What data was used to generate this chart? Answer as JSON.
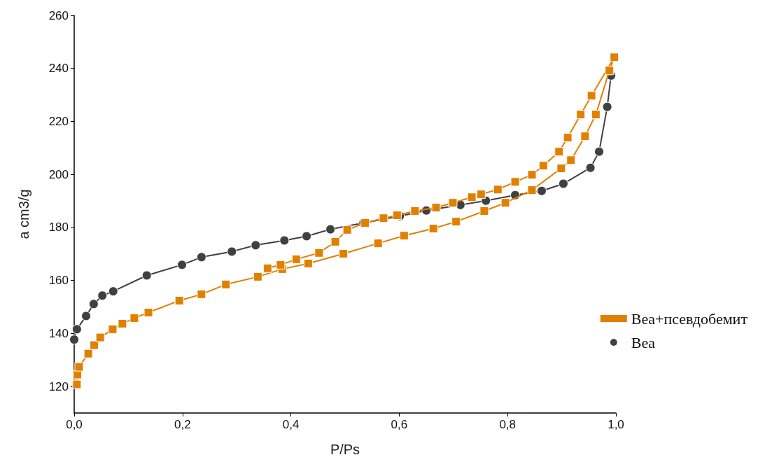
{
  "chart_data": {
    "type": "line",
    "xlabel": "P/Ps",
    "ylabel": "a cm3/g",
    "xlim": [
      0,
      1
    ],
    "ylim": [
      110,
      260
    ],
    "xticks": [
      {
        "value": 0,
        "label": "0,0"
      },
      {
        "value": 0.2,
        "label": "0,2"
      },
      {
        "value": 0.4,
        "label": "0,4"
      },
      {
        "value": 0.6,
        "label": "0,6"
      },
      {
        "value": 0.8,
        "label": "0,8"
      },
      {
        "value": 1,
        "label": "1,0"
      }
    ],
    "yticks": [
      120,
      140,
      160,
      180,
      200,
      220,
      240,
      260
    ],
    "grid": false,
    "legend": "bottom right",
    "line_style": "solid",
    "series": [
      {
        "name": "Bea+псевдобемит",
        "color": "#e08000",
        "marker": "square",
        "x": [
          0.005,
          0.006,
          0.009,
          0.026,
          0.037,
          0.048,
          0.071,
          0.089,
          0.111,
          0.137,
          0.194,
          0.235,
          0.28,
          0.339,
          0.384,
          0.432,
          0.497,
          0.561,
          0.609,
          0.663,
          0.705,
          0.757,
          0.796,
          0.845,
          0.899,
          0.917,
          0.943,
          0.963,
          0.988,
          0.997,
          0.955,
          0.935,
          0.911,
          0.895,
          0.866,
          0.845,
          0.814,
          0.782,
          0.751,
          0.734,
          0.699,
          0.668,
          0.629,
          0.596,
          0.571,
          0.537,
          0.504,
          0.482,
          0.452,
          0.41,
          0.381,
          0.357
        ],
        "values": [
          120.8,
          124.5,
          127.4,
          132.4,
          135.6,
          138.5,
          141.6,
          143.7,
          145.8,
          147.9,
          152.4,
          154.8,
          158.5,
          161.4,
          164.3,
          166.4,
          170.1,
          174,
          176.9,
          179.6,
          182.2,
          186.2,
          189.3,
          194.1,
          202.3,
          205.4,
          214.4,
          222.6,
          239.2,
          244.2,
          229.7,
          222.6,
          213.9,
          208.6,
          203.3,
          199.9,
          197.2,
          194.3,
          192.5,
          191.4,
          189.3,
          187.5,
          186.2,
          184.6,
          183.5,
          181.7,
          179.1,
          174.6,
          170.4,
          168,
          165.9,
          164.6
        ]
      },
      {
        "name": "Bea",
        "color": "#404040",
        "marker": "circle",
        "x": [
          0,
          0.005,
          0.022,
          0.036,
          0.052,
          0.072,
          0.134,
          0.199,
          0.235,
          0.291,
          0.335,
          0.388,
          0.429,
          0.473,
          0.534,
          0.601,
          0.65,
          0.713,
          0.76,
          0.814,
          0.863,
          0.903,
          0.953,
          0.969,
          0.984,
          0.991
        ],
        "values": [
          137.7,
          141.6,
          146.6,
          151.1,
          154.3,
          155.9,
          161.9,
          165.9,
          168.8,
          170.9,
          173.3,
          175.1,
          176.7,
          179.3,
          181.7,
          184.3,
          186.4,
          188.5,
          190.1,
          192.2,
          193.8,
          196.5,
          202.5,
          208.6,
          225.5,
          237.3
        ]
      }
    ]
  }
}
